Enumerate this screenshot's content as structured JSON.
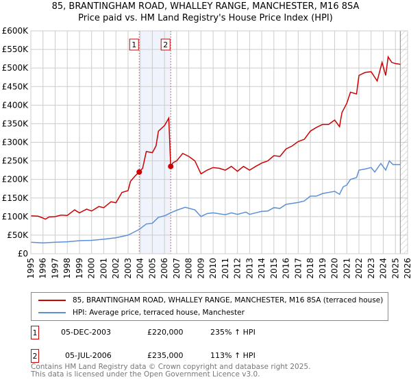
{
  "chart_data": {
    "type": "line",
    "title": "85, BRANTINGHAM ROAD, WHALLEY RANGE, MANCHESTER, M16 8SA",
    "subtitle": "Price paid vs. HM Land Registry's House Price Index (HPI)",
    "xlim": [
      1995,
      2026
    ],
    "ylim": [
      0,
      600000
    ],
    "x_ticks": [
      "1995",
      "1996",
      "1997",
      "1998",
      "1999",
      "2000",
      "2001",
      "2002",
      "2003",
      "2004",
      "2005",
      "2006",
      "2007",
      "2008",
      "2009",
      "2010",
      "2011",
      "2012",
      "2013",
      "2014",
      "2015",
      "2016",
      "2017",
      "2018",
      "2019",
      "2020",
      "2021",
      "2022",
      "2023",
      "2024",
      "2025",
      "2026"
    ],
    "y_ticks": [
      {
        "v": 0,
        "label": "£0"
      },
      {
        "v": 50000,
        "label": "£50K"
      },
      {
        "v": 100000,
        "label": "£100K"
      },
      {
        "v": 150000,
        "label": "£150K"
      },
      {
        "v": 200000,
        "label": "£200K"
      },
      {
        "v": 250000,
        "label": "£250K"
      },
      {
        "v": 300000,
        "label": "£300K"
      },
      {
        "v": 350000,
        "label": "£350K"
      },
      {
        "v": 400000,
        "label": "£400K"
      },
      {
        "v": 450000,
        "label": "£450K"
      },
      {
        "v": 500000,
        "label": "£500K"
      },
      {
        "v": 550000,
        "label": "£550K"
      },
      {
        "v": 600000,
        "label": "£600K"
      }
    ],
    "grid": true,
    "shaded_range": [
      2003.92,
      2006.51
    ],
    "forecast_hatch_from": 2025.4,
    "series": [
      {
        "name": "85, BRANTINGHAM ROAD, WHALLEY RANGE, MANCHESTER, M16 8SA (terraced house)",
        "color": "#cc0000",
        "x": [
          1995,
          1995.6,
          1996,
          1996.2,
          1996.5,
          1997,
          1997.5,
          1998,
          1998.6,
          1999,
          1999.6,
          2000,
          2000.6,
          2001,
          2001.6,
          2002,
          2002.5,
          2003,
          2003.2,
          2003.6,
          2003.92,
          2004.2,
          2004.5,
          2005,
          2005.3,
          2005.5,
          2006,
          2006.35,
          2006.51,
          2006.7,
          2007,
          2007.5,
          2008,
          2008.5,
          2009,
          2009.5,
          2010,
          2010.5,
          2011,
          2011.5,
          2012,
          2012.5,
          2013,
          2013.5,
          2014,
          2014.5,
          2015,
          2015.5,
          2016,
          2016.5,
          2017,
          2017.5,
          2018,
          2018.5,
          2019,
          2019.5,
          2020,
          2020.4,
          2020.6,
          2021,
          2021.3,
          2021.8,
          2022,
          2022.5,
          2023,
          2023.5,
          2023.9,
          2024.2,
          2024.4,
          2024.7,
          2025,
          2025.4
        ],
        "y": [
          102000,
          101000,
          96000,
          93000,
          99000,
          100000,
          104000,
          103000,
          118000,
          110000,
          120000,
          115000,
          127000,
          124000,
          140000,
          137000,
          165000,
          170000,
          195000,
          210000,
          220000,
          230000,
          275000,
          272000,
          290000,
          330000,
          345000,
          365000,
          235000,
          245000,
          250000,
          270000,
          262000,
          250000,
          215000,
          225000,
          232000,
          230000,
          225000,
          235000,
          222000,
          235000,
          225000,
          235000,
          244000,
          250000,
          264000,
          262000,
          282000,
          290000,
          302000,
          308000,
          330000,
          340000,
          348000,
          348000,
          360000,
          342000,
          380000,
          405000,
          435000,
          430000,
          480000,
          488000,
          490000,
          465000,
          515000,
          480000,
          530000,
          515000,
          512000,
          510000
        ]
      },
      {
        "name": "HPI: Average price, terraced house, Manchester",
        "color": "#5b8fd6",
        "x": [
          1995,
          1996,
          1997,
          1998,
          1999,
          2000,
          2001,
          2002,
          2003,
          2003.9,
          2004.5,
          2005,
          2005.5,
          2006,
          2006.5,
          2007,
          2007.7,
          2008.5,
          2009,
          2009.5,
          2010,
          2011,
          2011.5,
          2012,
          2012.7,
          2013,
          2014,
          2014.5,
          2015,
          2015.5,
          2016,
          2017,
          2017.5,
          2018,
          2018.5,
          2019,
          2020,
          2020.4,
          2020.7,
          2021,
          2021.3,
          2021.8,
          2022,
          2022.5,
          2023,
          2023.3,
          2023.8,
          2024.2,
          2024.5,
          2024.8,
          2025.4
        ],
        "y": [
          31000,
          29000,
          31000,
          32000,
          35000,
          36000,
          39000,
          43000,
          50000,
          65000,
          80000,
          82000,
          98000,
          102000,
          110000,
          117000,
          125000,
          118000,
          100000,
          108000,
          110000,
          105000,
          110000,
          106000,
          112000,
          106000,
          114000,
          115000,
          124000,
          122000,
          133000,
          138000,
          142000,
          155000,
          155000,
          162000,
          168000,
          160000,
          180000,
          185000,
          200000,
          205000,
          225000,
          228000,
          232000,
          220000,
          243000,
          225000,
          250000,
          240000,
          240000
        ]
      }
    ],
    "sales": [
      {
        "id": "1",
        "x": 2003.92,
        "y": 220000
      },
      {
        "id": "2",
        "x": 2006.51,
        "y": 235000
      }
    ]
  },
  "legend": {
    "property": "85, BRANTINGHAM ROAD, WHALLEY RANGE, MANCHESTER, M16 8SA (terraced house)",
    "hpi": "HPI: Average price, terraced house, Manchester"
  },
  "transactions": [
    {
      "id": "1",
      "date": "05-DEC-2003",
      "price": "£220,000",
      "hpi": "235% ↑ HPI"
    },
    {
      "id": "2",
      "date": "05-JUL-2006",
      "price": "£235,000",
      "hpi": "113% ↑ HPI"
    }
  ],
  "footer": {
    "line1": "Contains HM Land Registry data © Crown copyright and database right 2025.",
    "line2": "This data is licensed under the Open Government Licence v3.0."
  }
}
